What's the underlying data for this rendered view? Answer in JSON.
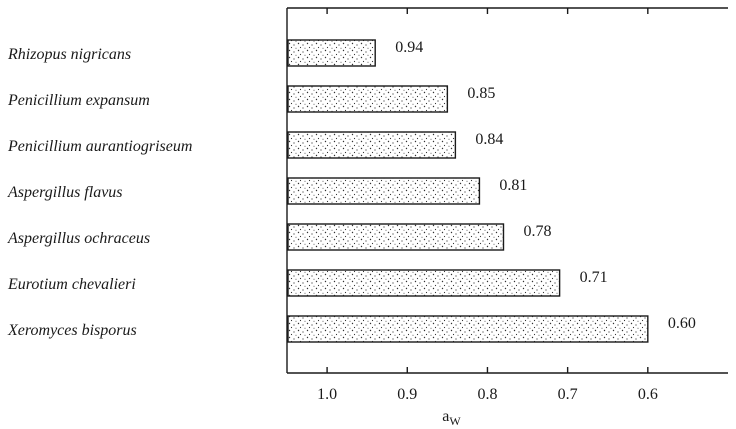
{
  "chart_data": {
    "type": "bar",
    "orientation": "horizontal",
    "categories": [
      "Rhizopus nigricans",
      "Penicillium expansum",
      "Penicillium aurantiogriseum",
      "Aspergillus flavus",
      "Aspergillus ochraceus",
      "Eurotium chevalieri",
      "Xeromyces bisporus"
    ],
    "values": [
      0.94,
      0.85,
      0.84,
      0.81,
      0.78,
      0.71,
      0.6
    ],
    "value_labels": [
      "0.94",
      "0.85",
      "0.84",
      "0.81",
      "0.78",
      "0.71",
      "0.60"
    ],
    "xlabel": "a",
    "xlabel_subscript": "W",
    "xlim": [
      1.05,
      0.5
    ],
    "x_reversed": true,
    "xticks": [
      1.0,
      0.9,
      0.8,
      0.7,
      0.6
    ],
    "xtick_labels": [
      "1.0",
      "0.9",
      "0.8",
      "0.7",
      "0.6"
    ],
    "grid": false,
    "bar_fill": "stippled",
    "colors": {
      "ink": "#1a1a1a",
      "background": "#ffffff"
    }
  }
}
